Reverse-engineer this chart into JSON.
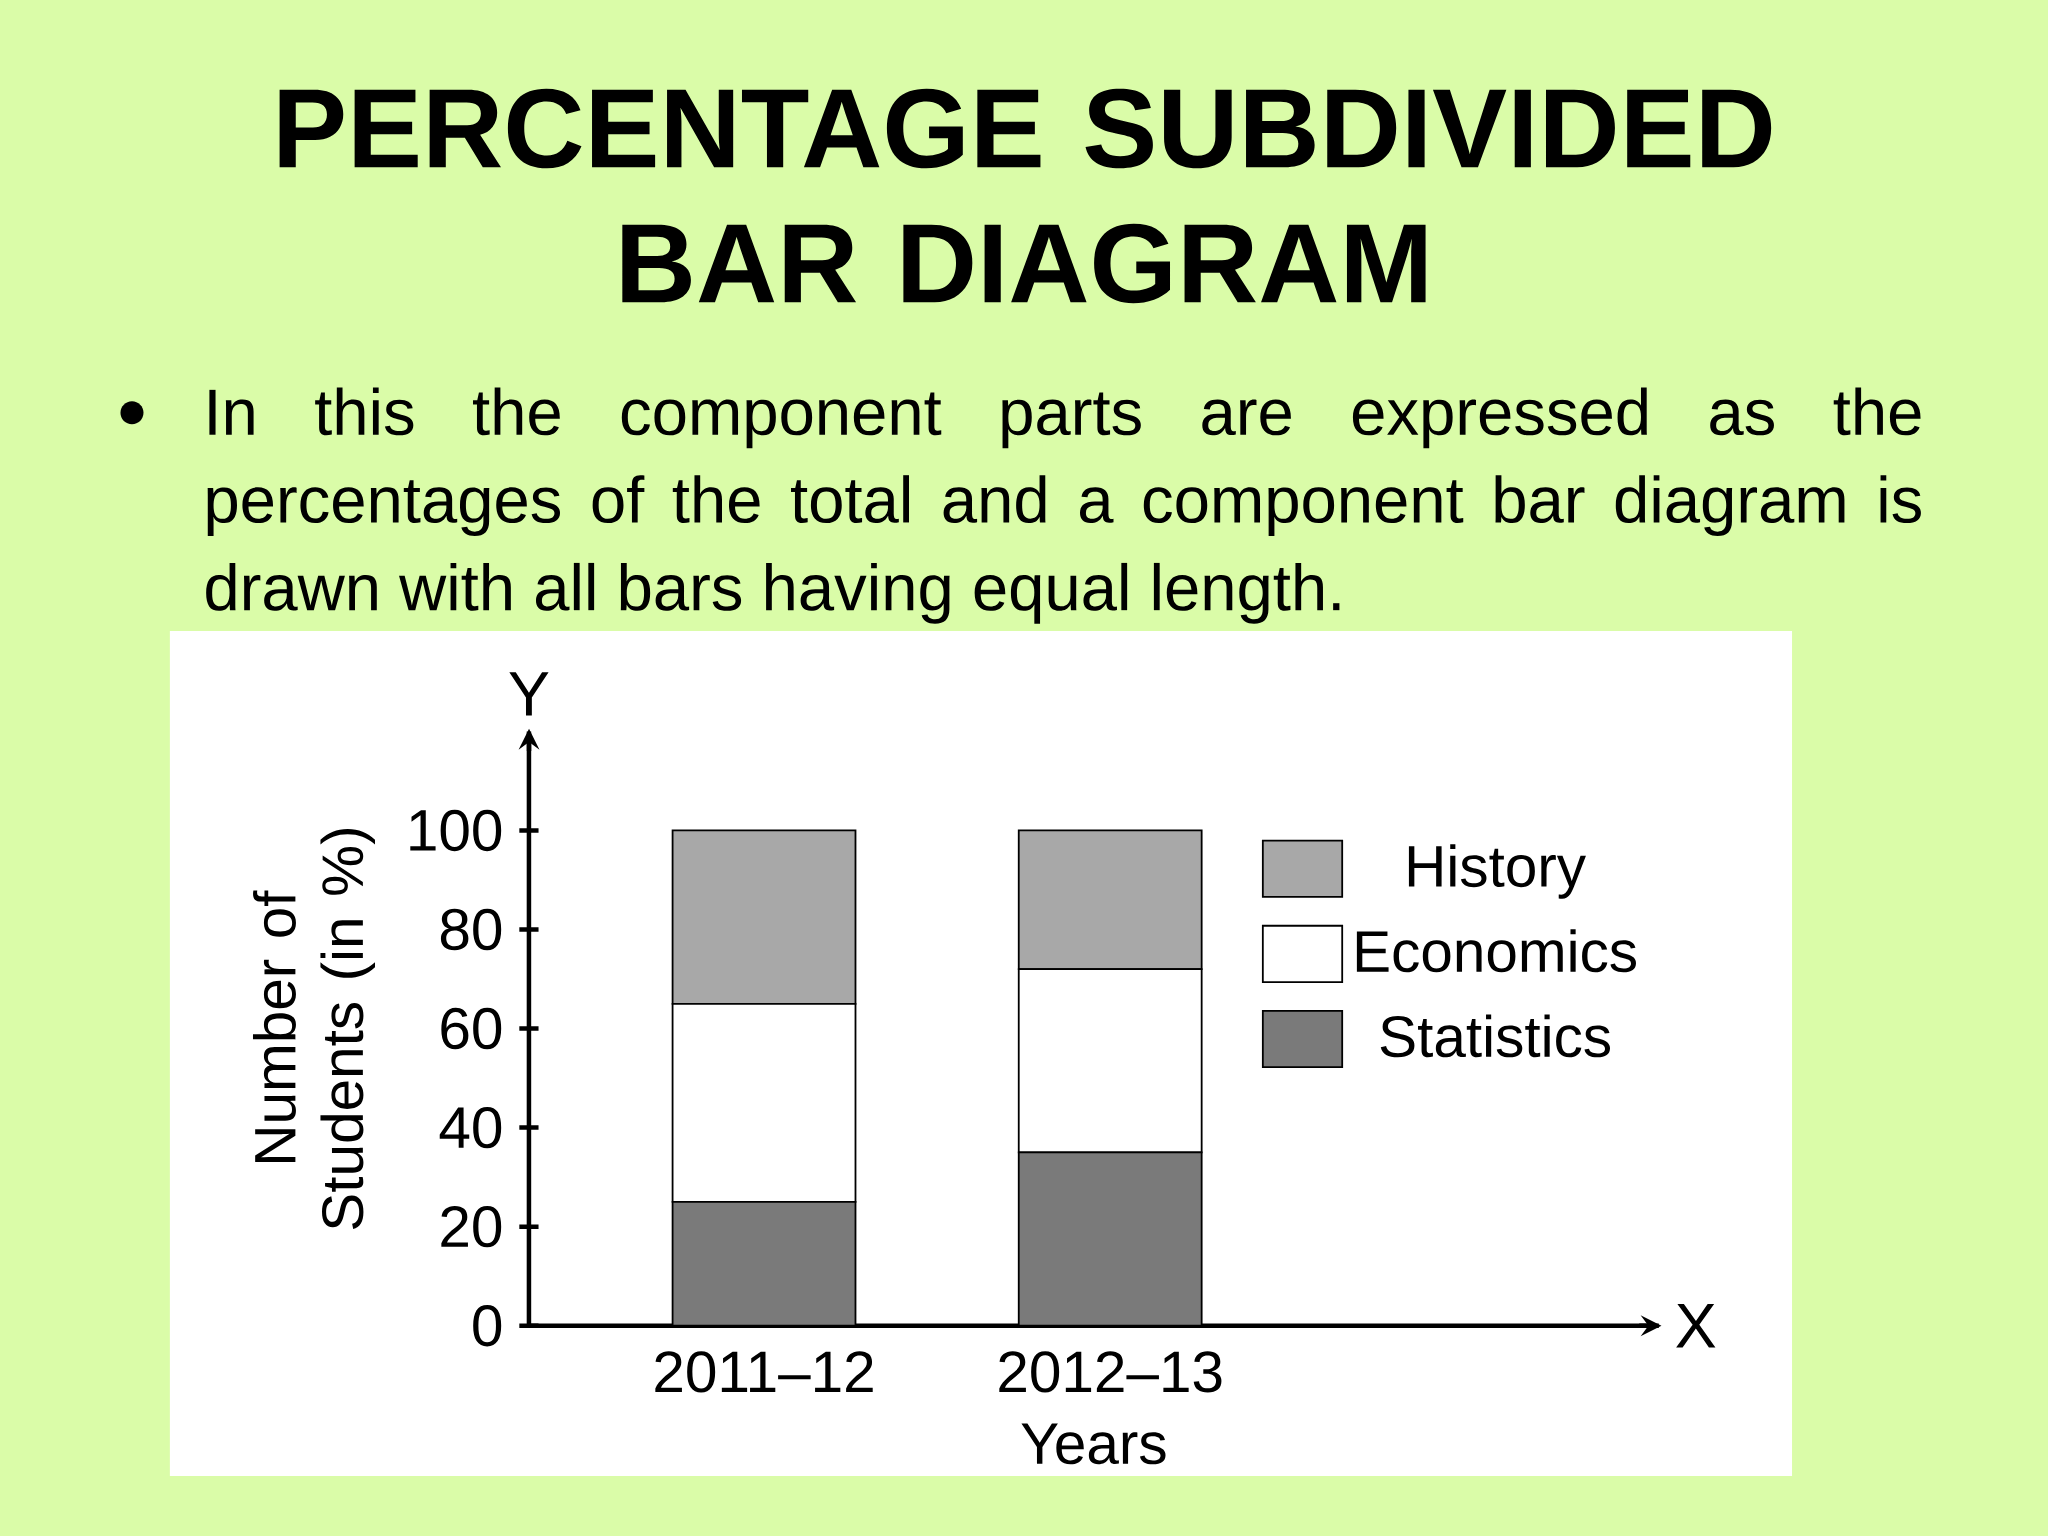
{
  "chart_data": {
    "type": "bar",
    "title": "PERCENTAGE SUBDIVIDED BAR DIAGRAM",
    "subtitle": "In this the component parts are expressed as the percentages of the total and a component bar diagram is drawn with all bars having equal length.",
    "categories": [
      "2011–12",
      "2012–13"
    ],
    "series": [
      {
        "name": "Statistics",
        "color": "#7a7a7a",
        "values": [
          25,
          35
        ]
      },
      {
        "name": "Economics",
        "color": "#ffffff",
        "values": [
          40,
          37
        ]
      },
      {
        "name": "History",
        "color": "#a8a8a8",
        "values": [
          35,
          28
        ]
      }
    ],
    "stacked": true,
    "ylim": [
      0,
      120
    ],
    "yticks": [
      0,
      20,
      40,
      60,
      80,
      100
    ],
    "xlabel": "Years",
    "ylabel": "Number of Students (in %)",
    "legend": "top right",
    "annotations": [
      "X",
      "Y"
    ]
  }
}
